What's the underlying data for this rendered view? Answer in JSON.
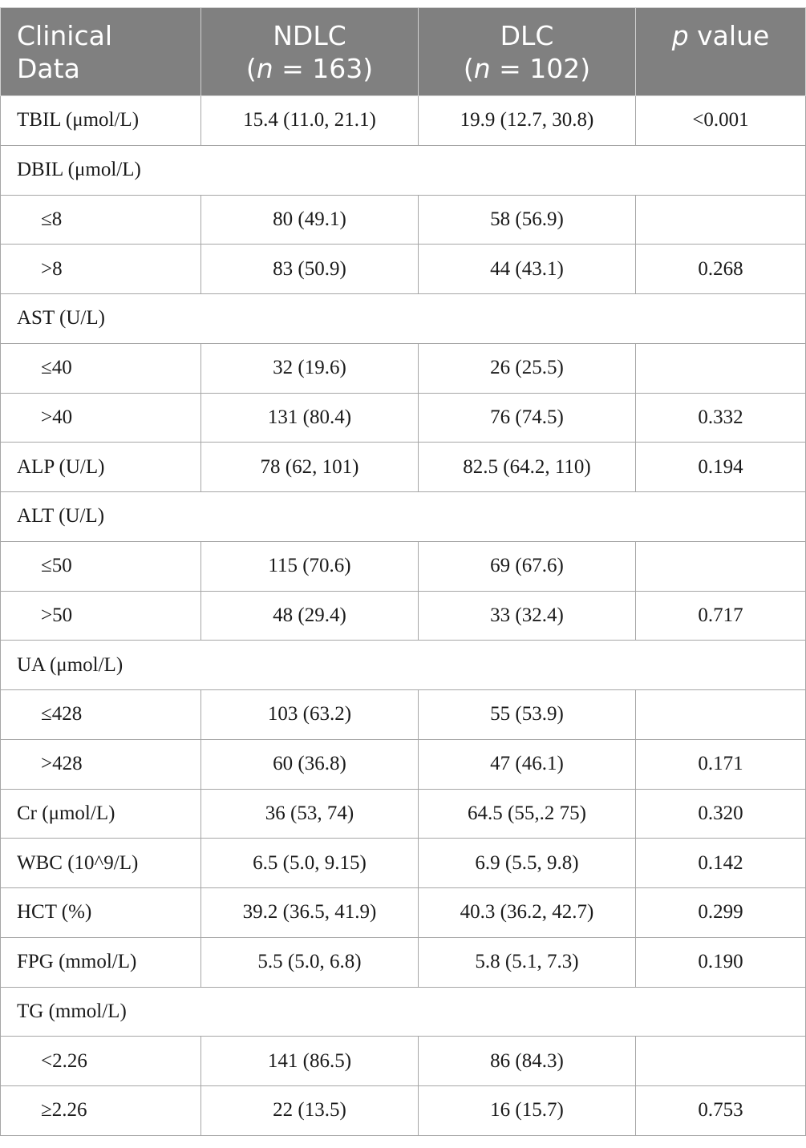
{
  "header": {
    "col1_line1": "Clinical",
    "col1_line2": "Data",
    "col2_line1": "NDLC",
    "col2_n_var": "n",
    "col2_n_rest": " = 163)",
    "col3_line1": "DLC",
    "col3_n_var": "n",
    "col3_n_rest": " = 102)",
    "paren_open": "(",
    "col4_p": "p",
    "col4_rest": " value"
  },
  "rows": [
    {
      "type": "data",
      "label": "TBIL (μmol/L)",
      "ndlc": "15.4 (11.0, 21.1)",
      "dlc": "19.9 (12.7, 30.8)",
      "p": "<0.001"
    },
    {
      "type": "group",
      "label": "DBIL (μmol/L)"
    },
    {
      "type": "sub",
      "label": "≤8",
      "ndlc": "80 (49.1)",
      "dlc": "58 (56.9)",
      "p": ""
    },
    {
      "type": "sub",
      "label": ">8",
      "ndlc": "83 (50.9)",
      "dlc": "44 (43.1)",
      "p": "0.268"
    },
    {
      "type": "group",
      "label": "AST (U/L)"
    },
    {
      "type": "sub",
      "label": "≤40",
      "ndlc": "32 (19.6)",
      "dlc": "26 (25.5)",
      "p": ""
    },
    {
      "type": "sub",
      "label": ">40",
      "ndlc": "131 (80.4)",
      "dlc": "76 (74.5)",
      "p": "0.332"
    },
    {
      "type": "data",
      "label": "ALP (U/L)",
      "ndlc": "78 (62, 101)",
      "dlc": "82.5 (64.2, 110)",
      "p": "0.194"
    },
    {
      "type": "group",
      "label": "ALT (U/L)"
    },
    {
      "type": "sub",
      "label": "≤50",
      "ndlc": "115 (70.6)",
      "dlc": "69 (67.6)",
      "p": ""
    },
    {
      "type": "sub",
      "label": ">50",
      "ndlc": "48 (29.4)",
      "dlc": "33 (32.4)",
      "p": "0.717"
    },
    {
      "type": "group",
      "label": "UA (μmol/L)"
    },
    {
      "type": "sub",
      "label": "≤428",
      "ndlc": "103 (63.2)",
      "dlc": "55 (53.9)",
      "p": ""
    },
    {
      "type": "sub",
      "label": ">428",
      "ndlc": "60 (36.8)",
      "dlc": "47 (46.1)",
      "p": "0.171"
    },
    {
      "type": "data",
      "label": "Cr (μmol/L)",
      "ndlc": "36 (53, 74)",
      "dlc": "64.5 (55,.2 75)",
      "p": "0.320"
    },
    {
      "type": "data",
      "label": "WBC (10^9/L)",
      "ndlc": "6.5 (5.0, 9.15)",
      "dlc": "6.9 (5.5, 9.8)",
      "p": "0.142"
    },
    {
      "type": "data",
      "label": "HCT (%)",
      "ndlc": "39.2 (36.5, 41.9)",
      "dlc": "40.3 (36.2, 42.7)",
      "p": "0.299"
    },
    {
      "type": "data",
      "label": "FPG (mmol/L)",
      "ndlc": "5.5 (5.0, 6.8)",
      "dlc": "5.8 (5.1, 7.3)",
      "p": "0.190"
    },
    {
      "type": "group",
      "label": "TG (mmol/L)"
    },
    {
      "type": "sub",
      "label": "<2.26",
      "ndlc": "141 (86.5)",
      "dlc": "86 (84.3)",
      "p": ""
    },
    {
      "type": "sub",
      "label": "≥2.26",
      "ndlc": "22 (13.5)",
      "dlc": "16 (15.7)",
      "p": "0.753"
    }
  ]
}
